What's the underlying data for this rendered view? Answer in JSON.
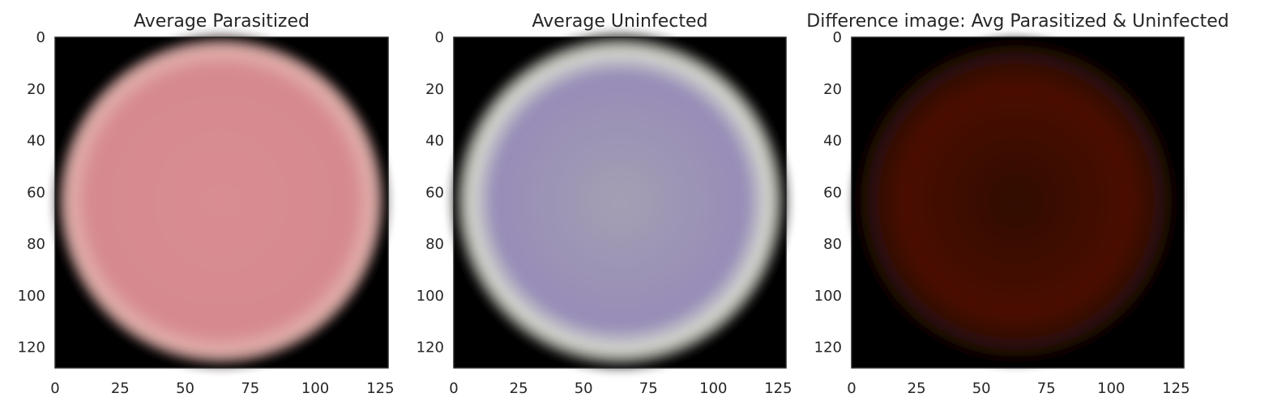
{
  "chart_data": [
    {
      "type": "heatmap",
      "title": "Average Parasitized",
      "xlabel": "",
      "ylabel": "",
      "xlim": [
        0,
        128
      ],
      "ylim": [
        128,
        0
      ],
      "x_ticks": [
        "0",
        "25",
        "50",
        "75",
        "100",
        "125"
      ],
      "y_ticks": [
        "0",
        "20",
        "40",
        "60",
        "80",
        "100",
        "120"
      ],
      "image": {
        "shape": "disc",
        "center": [
          64,
          64
        ],
        "radius": 62,
        "fill_color": "#d88d92",
        "edge_color": "#e6b8b2",
        "background": "#000000"
      }
    },
    {
      "type": "heatmap",
      "title": "Average Uninfected",
      "xlabel": "",
      "ylabel": "",
      "xlim": [
        0,
        128
      ],
      "ylim": [
        128,
        0
      ],
      "x_ticks": [
        "0",
        "25",
        "50",
        "75",
        "100",
        "125"
      ],
      "y_ticks": [
        "0",
        "20",
        "40",
        "60",
        "80",
        "100",
        "120"
      ],
      "image": {
        "shape": "disc",
        "center": [
          64,
          64
        ],
        "radius": 62,
        "fill_color": "#9b90b8",
        "edge_color": "#d6d8cf",
        "background": "#000000"
      }
    },
    {
      "type": "heatmap",
      "title": "Difference image: Avg Parasitized & Uninfected",
      "xlabel": "",
      "ylabel": "",
      "xlim": [
        0,
        128
      ],
      "ylim": [
        128,
        0
      ],
      "x_ticks": [
        "0",
        "25",
        "50",
        "75",
        "100",
        "125"
      ],
      "y_ticks": [
        "0",
        "20",
        "40",
        "60",
        "80",
        "100",
        "120"
      ],
      "image": {
        "shape": "disc",
        "center": [
          64,
          64
        ],
        "radius": 60,
        "fill_color": "#3c0a02",
        "edge_color": "#5a1c08",
        "background": "#000000"
      }
    }
  ]
}
